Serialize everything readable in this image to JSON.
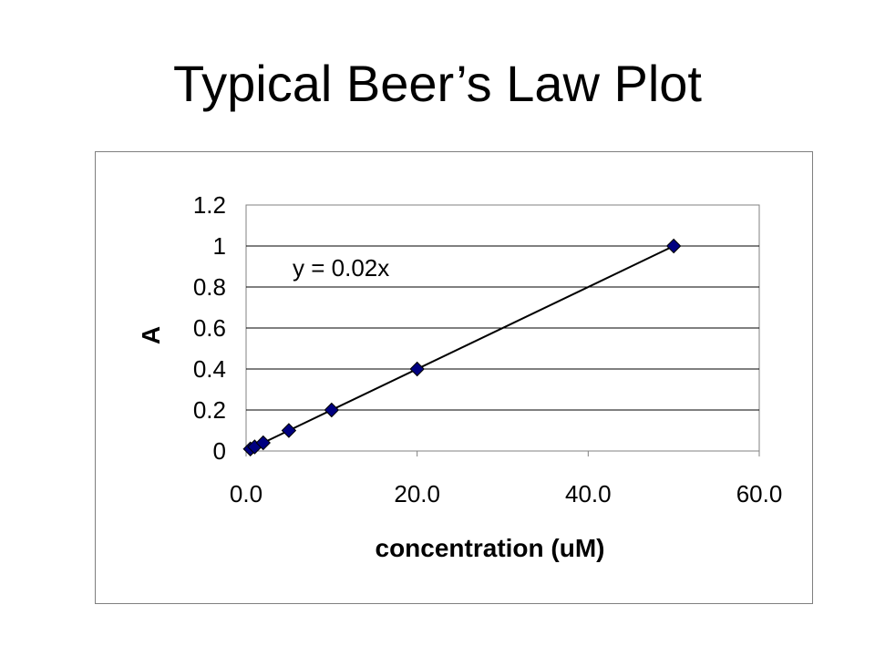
{
  "slide": {
    "title": "Typical Beer’s Law Plot"
  },
  "chart_data": {
    "type": "scatter",
    "title": "",
    "xlabel": "concentration (uM)",
    "ylabel": "A",
    "xlim": [
      0,
      60
    ],
    "ylim": [
      0,
      1.2
    ],
    "x_ticks": [
      0,
      20,
      40,
      60
    ],
    "x_tick_labels": [
      "0.0",
      "20.0",
      "40.0",
      "60.0"
    ],
    "y_ticks": [
      0,
      0.2,
      0.4,
      0.6,
      0.8,
      1.0,
      1.2
    ],
    "y_tick_labels": [
      "0",
      "0.2",
      "0.4",
      "0.6",
      "0.8",
      "1",
      "1.2"
    ],
    "grid": "horizontal",
    "series": [
      {
        "x": [
          0.5,
          1,
          2,
          5,
          10,
          20,
          50
        ],
        "y": [
          0.01,
          0.02,
          0.04,
          0.1,
          0.2,
          0.4,
          1.0
        ],
        "marker": "diamond",
        "color": "#000080"
      }
    ],
    "trendline": {
      "equation": "y = 0.02x",
      "slope": 0.02,
      "intercept": 0,
      "x_range": [
        0.5,
        50
      ]
    }
  }
}
